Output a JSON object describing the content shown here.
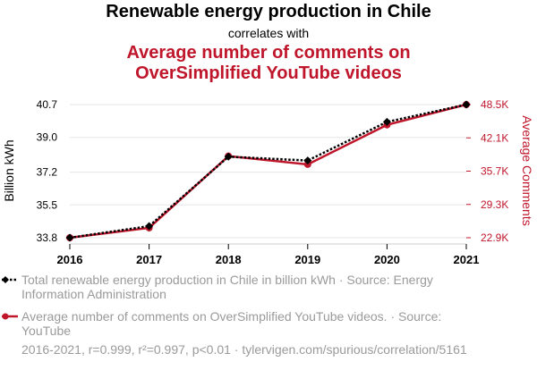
{
  "title": "Renewable energy production in Chile",
  "subtitle": "correlates with",
  "title2_line1": "Average number of comments on",
  "title2_line2": "OverSimplified YouTube videos",
  "colors": {
    "series1": "#000000",
    "series2": "#c0162b",
    "legend_text": "#9a9a9a"
  },
  "chart_data": {
    "type": "line",
    "x": [
      2016,
      2017,
      2018,
      2019,
      2020,
      2021
    ],
    "x_tick_labels": [
      "2016",
      "2017",
      "2018",
      "2019",
      "2020",
      "2021"
    ],
    "series": [
      {
        "name": "Total renewable energy production in Chile in billion kWh",
        "axis": "left",
        "values": [
          33.8,
          34.4,
          38.0,
          37.8,
          39.8,
          40.7
        ]
      },
      {
        "name": "Average number of comments on OverSimplified YouTube videos",
        "axis": "right",
        "values": [
          22900,
          24800,
          38600,
          37000,
          44600,
          48500
        ]
      }
    ],
    "y_left": {
      "label": "Billion kWh",
      "ylim": [
        33.8,
        40.7
      ],
      "ticks": [
        33.8,
        35.5,
        37.2,
        39.0,
        40.7
      ],
      "tick_labels": [
        "33.8",
        "35.5",
        "37.2",
        "39.0",
        "40.7"
      ]
    },
    "y_right": {
      "label": "Average Comments",
      "ylim": [
        22900,
        48500
      ],
      "ticks": [
        22900,
        29300,
        35700,
        42100,
        48500
      ],
      "tick_labels": [
        "22.9K",
        "29.3K",
        "35.7K",
        "42.1K",
        "48.5K"
      ]
    }
  },
  "legend": [
    "Total renewable energy production in Chile in billion kWh · Source: Energy Information Administration",
    "Average number of comments on OverSimplified YouTube videos. · Source: YouTube"
  ],
  "footer": "2016-2021, r=0.999, r²=0.997, p<0.01 · tylervigen.com/spurious/correlation/5161"
}
